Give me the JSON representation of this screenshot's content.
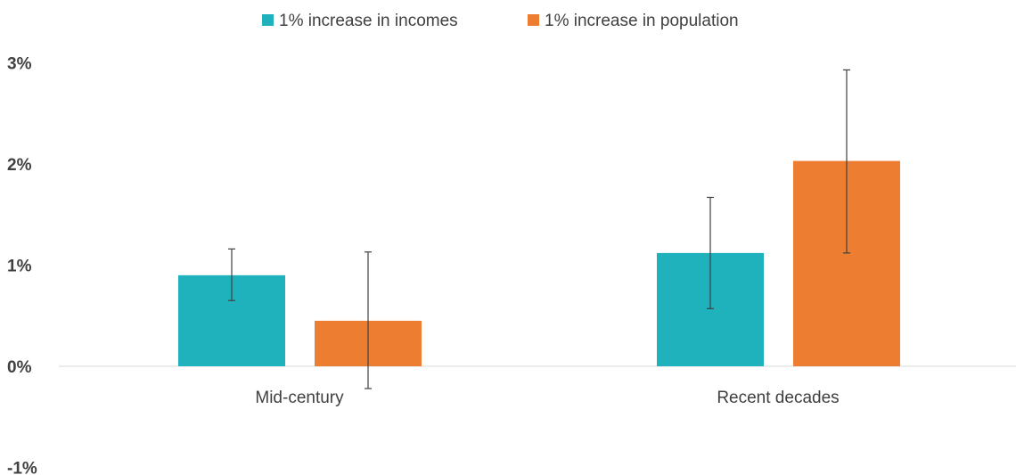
{
  "chart_data": {
    "type": "bar",
    "categories": [
      "Mid-century",
      "Recent decades"
    ],
    "series": [
      {
        "name": "1% increase in incomes",
        "color": "#20b2bc",
        "values": [
          0.9,
          1.12
        ],
        "error_low": [
          0.65,
          0.57
        ],
        "error_high": [
          1.16,
          1.67
        ]
      },
      {
        "name": "1% increase in population",
        "color": "#ed7d31",
        "values": [
          0.45,
          2.03
        ],
        "error_low": [
          -0.22,
          1.12
        ],
        "error_high": [
          1.13,
          2.93
        ]
      }
    ],
    "ylim": [
      -1,
      3
    ],
    "yticks": [
      "3%",
      "2%",
      "1%",
      "0%",
      "-1%"
    ],
    "ytick_values": [
      3,
      2,
      1,
      0,
      -1
    ],
    "legend_position": "top-center",
    "grid": false,
    "baseline_color": "#d9d9d9",
    "errorbar_color": "#404040"
  }
}
